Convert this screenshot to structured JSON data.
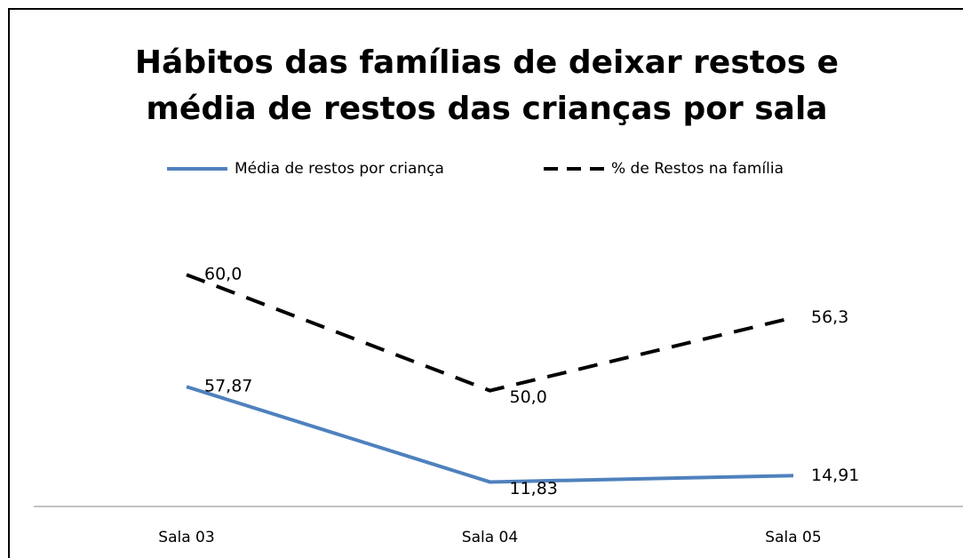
{
  "chart_data": {
    "type": "line",
    "title": [
      "Hábitos das famílias de deixar restos e",
      "média de restos das crianças por sala"
    ],
    "categories": [
      "Sala 03",
      "Sala 04",
      "Sala 05"
    ],
    "series": [
      {
        "name": "Média de restos por criança",
        "color": "#4f81bd",
        "dash": false,
        "values": [
          57.87,
          11.83,
          14.91
        ],
        "value_labels": [
          "57,87",
          "11,83",
          "14,91"
        ]
      },
      {
        "name": "% de Restos na família",
        "color": "#000000",
        "dash": true,
        "axis": "y2",
        "values": [
          60.0,
          50.0,
          56.3
        ],
        "value_labels": [
          "60,0",
          "50,0",
          "56,3"
        ]
      }
    ],
    "ylim": [
      0,
      140
    ],
    "y2lim": [
      40,
      65
    ],
    "legend": "top"
  }
}
